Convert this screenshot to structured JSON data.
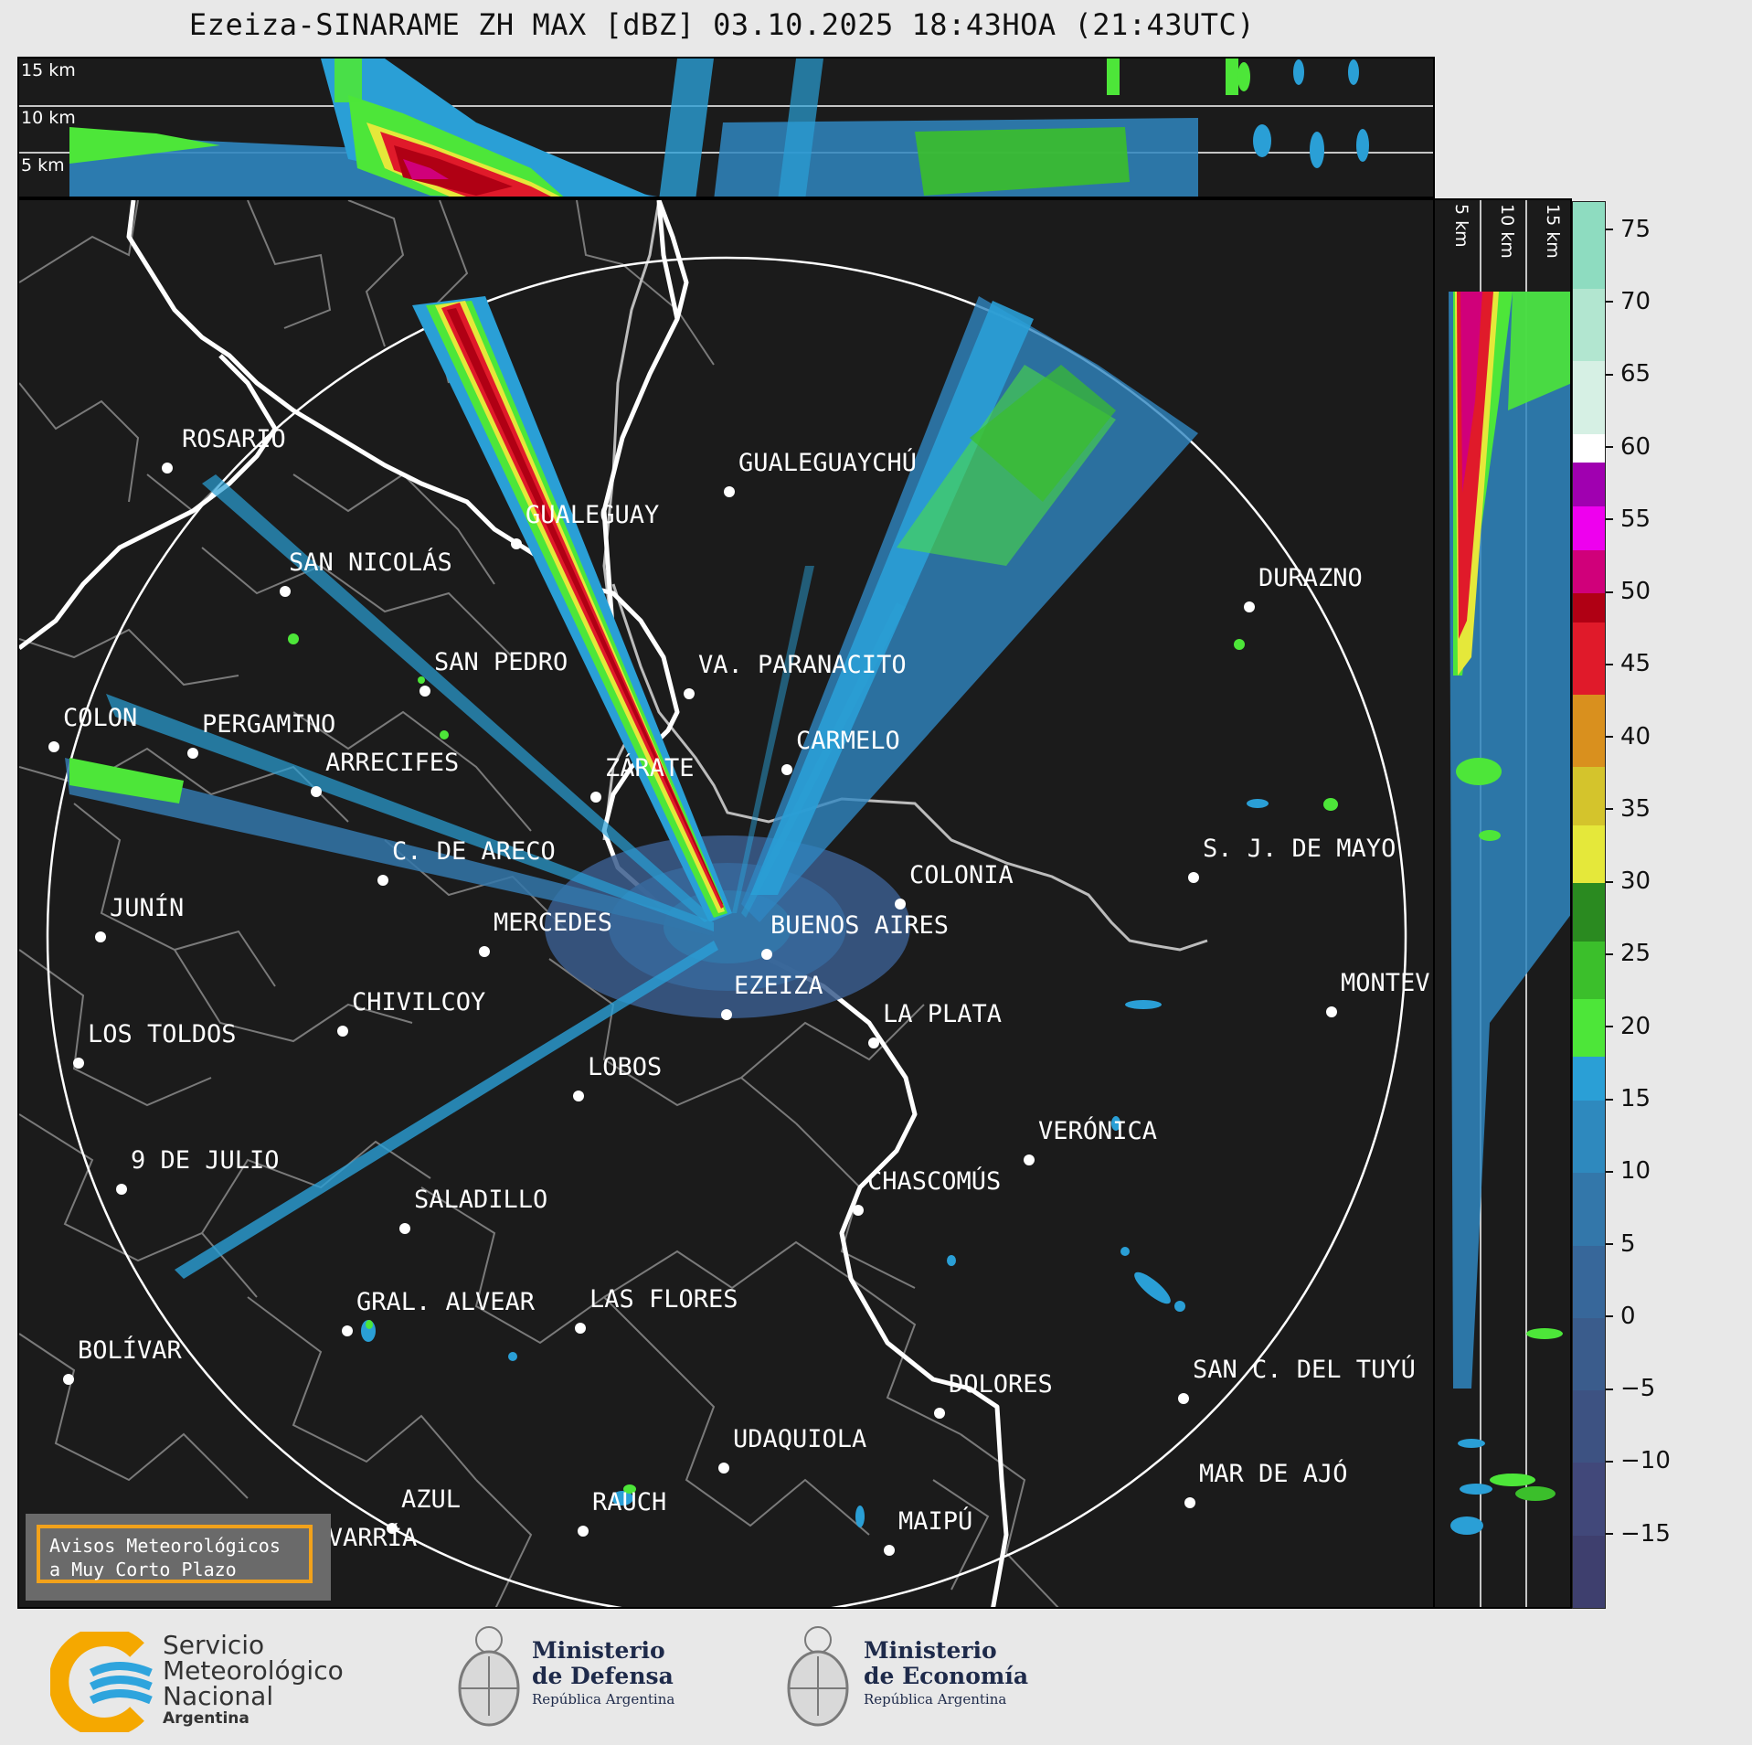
{
  "title": "Ezeiza-SINARAME ZH MAX [dBZ] 03.10.2025 18:43HOA (21:43UTC)",
  "top_panel": {
    "km_labels": [
      "15 km",
      "10 km",
      "5 km"
    ]
  },
  "side_panel": {
    "km_labels": [
      "5 km",
      "10 km",
      "15 km"
    ]
  },
  "colorbar": {
    "ticks": [
      "75",
      "70",
      "65",
      "60",
      "55",
      "50",
      "45",
      "40",
      "35",
      "30",
      "25",
      "20",
      "15",
      "10",
      "5",
      "0",
      "−5",
      "−10",
      "−15"
    ],
    "range": [
      -20,
      77
    ],
    "bands": [
      {
        "from": -20,
        "to": -15,
        "color": "#3e3f6e"
      },
      {
        "from": -15,
        "to": -10,
        "color": "#41487a"
      },
      {
        "from": -10,
        "to": -5,
        "color": "#3d5282"
      },
      {
        "from": -5,
        "to": 0,
        "color": "#3a5c8c"
      },
      {
        "from": 0,
        "to": 5,
        "color": "#37679a"
      },
      {
        "from": 5,
        "to": 10,
        "color": "#3377aa"
      },
      {
        "from": 10,
        "to": 15,
        "color": "#2e89be"
      },
      {
        "from": 15,
        "to": 18,
        "color": "#2a9fd6"
      },
      {
        "from": 18,
        "to": 22,
        "color": "#4de639"
      },
      {
        "from": 22,
        "to": 26,
        "color": "#3bbf2b"
      },
      {
        "from": 26,
        "to": 30,
        "color": "#2a8a20"
      },
      {
        "from": 30,
        "to": 34,
        "color": "#e5e83a"
      },
      {
        "from": 34,
        "to": 38,
        "color": "#d4c42c"
      },
      {
        "from": 38,
        "to": 43,
        "color": "#d9901e"
      },
      {
        "from": 43,
        "to": 48,
        "color": "#e01a2a"
      },
      {
        "from": 48,
        "to": 50,
        "color": "#b00014"
      },
      {
        "from": 50,
        "to": 53,
        "color": "#d0007a"
      },
      {
        "from": 53,
        "to": 56,
        "color": "#ee00ee"
      },
      {
        "from": 56,
        "to": 59,
        "color": "#a000b0"
      },
      {
        "from": 59,
        "to": 61,
        "color": "#ffffff"
      },
      {
        "from": 61,
        "to": 66,
        "color": "#d6f0e4"
      },
      {
        "from": 66,
        "to": 71,
        "color": "#b2e6d0"
      },
      {
        "from": 71,
        "to": 77,
        "color": "#8edcc0"
      }
    ]
  },
  "cities": [
    {
      "name": "ROSARIO",
      "id": "rosario"
    },
    {
      "name": "GUALEGUAYCHÚ",
      "id": "gualeguaychu"
    },
    {
      "name": "GUALEGUAY",
      "id": "gualeguay"
    },
    {
      "name": "SAN NICOLÁS",
      "id": "san-nicolas"
    },
    {
      "name": "DURAZNO",
      "id": "durazno"
    },
    {
      "name": "SAN PEDRO",
      "id": "san-pedro"
    },
    {
      "name": "VA. PARANACITO",
      "id": "va-paranacito"
    },
    {
      "name": "COLON",
      "id": "colon"
    },
    {
      "name": "PERGAMINO",
      "id": "pergamino"
    },
    {
      "name": "CARMELO",
      "id": "carmelo"
    },
    {
      "name": "ARRECIFES",
      "id": "arrecifes"
    },
    {
      "name": "ZÁRATE",
      "id": "zarate"
    },
    {
      "name": "S. J. DE MAYO",
      "id": "sj-de-mayo"
    },
    {
      "name": "C. DE ARECO",
      "id": "c-de-areco"
    },
    {
      "name": "COLONIA",
      "id": "colonia"
    },
    {
      "name": "JUNÍN",
      "id": "junin"
    },
    {
      "name": "BUENOS AIRES",
      "id": "buenos-aires"
    },
    {
      "name": "MERCEDES",
      "id": "mercedes"
    },
    {
      "name": "MONTEV",
      "id": "montevideo"
    },
    {
      "name": "EZEIZA",
      "id": "ezeiza"
    },
    {
      "name": "CHIVILCOY",
      "id": "chivilcoy"
    },
    {
      "name": "LA PLATA",
      "id": "la-plata"
    },
    {
      "name": "LOS TOLDOS",
      "id": "los-toldos"
    },
    {
      "name": "LOBOS",
      "id": "lobos"
    },
    {
      "name": "VERÓNICA",
      "id": "veronica"
    },
    {
      "name": "9 DE JULIO",
      "id": "9-de-julio"
    },
    {
      "name": "CHASCOMÚS",
      "id": "chascomus"
    },
    {
      "name": "SALADILLO",
      "id": "saladillo"
    },
    {
      "name": "GRAL. ALVEAR",
      "id": "gral-alvear"
    },
    {
      "name": "LAS FLORES",
      "id": "las-flores"
    },
    {
      "name": "BOLÍVAR",
      "id": "bolivar"
    },
    {
      "name": "DOLORES",
      "id": "dolores"
    },
    {
      "name": "SAN C. DEL TUYÚ",
      "id": "san-c-del-tuyu"
    },
    {
      "name": "UDAQUIOLA",
      "id": "udaquiola"
    },
    {
      "name": "MAR DE AJÓ",
      "id": "mar-de-ajo"
    },
    {
      "name": "AZUL",
      "id": "azul"
    },
    {
      "name": "RAUCH",
      "id": "rauch"
    },
    {
      "name": "MAIPÚ",
      "id": "maipu"
    },
    {
      "name": "OLAVARRÍA",
      "id": "olavarria"
    }
  ],
  "warning_box": {
    "line1": "Avisos Meteorológicos",
    "line2": "a Muy Corto Plazo"
  },
  "footer": {
    "smn": {
      "line1": "Servicio",
      "line2": "Meteorológico",
      "line3": "Nacional",
      "line4": "Argentina"
    },
    "defensa": {
      "line1": "Ministerio",
      "line2": "de Defensa",
      "sub": "República Argentina"
    },
    "economia": {
      "line1": "Ministerio",
      "line2": "de Economía",
      "sub": "República Argentina"
    }
  }
}
